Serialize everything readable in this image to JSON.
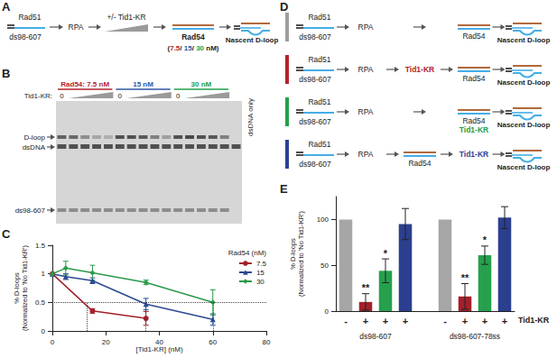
{
  "panels": {
    "A": {
      "letter": "A",
      "dna": "ds98-607",
      "protein1": "Rad51",
      "protein2": "RPA",
      "titrant": "+/- Tid1-KR",
      "protein3": "Rad54",
      "rad54_parts": [
        {
          "text": "(",
          "color": "#222222"
        },
        {
          "text": "7.5",
          "color": "#b3232d"
        },
        {
          "text": "/ ",
          "color": "#222222"
        },
        {
          "text": "15",
          "color": "#2f57a5"
        },
        {
          "text": "/ ",
          "color": "#222222"
        },
        {
          "text": "30",
          "color": "#22a04b"
        },
        {
          "text": " nM)",
          "color": "#222222"
        }
      ],
      "product": "Nascent D-loop"
    },
    "B": {
      "letter": "B",
      "groups": [
        {
          "label": "Rad54: 7.5 nM",
          "color": "#b3232d"
        },
        {
          "label": "15 nM",
          "color": "#2f57a5"
        },
        {
          "label": "30 nM",
          "color": "#22a04b"
        }
      ],
      "row_label": "Tid1-KR:",
      "zero_label": "0",
      "control_lane": "dsDNA only",
      "band_labels": [
        "D-loop",
        "dsDNA",
        "ds98-607"
      ],
      "d_loop_band": [
        0.75,
        0.7,
        0.45,
        0.3,
        0.25,
        0.85,
        0.85,
        0.8,
        0.55,
        0.35,
        0.85,
        0.9,
        0.85,
        0.8,
        0.55,
        0
      ],
      "ssdna_band": [
        1,
        1,
        1,
        1,
        1,
        1,
        1,
        1,
        1,
        1,
        1,
        1,
        1,
        1,
        1,
        0
      ]
    },
    "C": {
      "letter": "C"
    },
    "D": {
      "letter": "D",
      "protein": "Rad51",
      "dna": "ds98-607",
      "product": "Nascent D-loop",
      "rows": [
        {
          "color": "#9e9e9e",
          "columns": [
            {
              "lines": [
                {
                  "text": "RPA"
                }
              ]
            },
            {
              "dsdna": true,
              "lines": [
                {
                  "text": "Rad54"
                }
              ]
            }
          ]
        },
        {
          "color": "#b3232d",
          "columns": [
            {
              "lines": [
                {
                  "text": "RPA"
                }
              ]
            },
            {
              "lines": [
                {
                  "text": "Tid1-KR",
                  "color": "#b3232d"
                }
              ]
            },
            {
              "dsdna": true,
              "lines": [
                {
                  "text": "Rad54"
                }
              ]
            }
          ]
        },
        {
          "color": "#22a04b",
          "columns": [
            {
              "lines": [
                {
                  "text": "RPA"
                }
              ]
            },
            {
              "dsdna": true,
              "lines": [
                {
                  "text": "Rad54"
                },
                {
                  "text": "Tid1-KR",
                  "color": "#22a04b"
                }
              ]
            }
          ]
        },
        {
          "color": "#2f3f94",
          "columns": [
            {
              "lines": [
                {
                  "text": "RPA"
                }
              ]
            },
            {
              "dsdna": true,
              "lines": [
                {
                  "text": "Rad54"
                }
              ]
            },
            {
              "lines": [
                {
                  "text": "Tid1-KR",
                  "color": "#2f3f94"
                }
              ]
            }
          ]
        }
      ]
    },
    "E": {
      "letter": "E"
    }
  },
  "chart_data": [
    {
      "type": "line",
      "x_label": "[Tid1-KR] (nM)",
      "y_label": [
        "% D-loops",
        "(Normalized to 'No Tid1-KR')"
      ],
      "xlim": [
        0,
        80
      ],
      "xticks": [
        0,
        20,
        40,
        60,
        80
      ],
      "ylim": [
        0,
        1.5
      ],
      "yticks": [
        0,
        0.5,
        1,
        1.5
      ],
      "grid": false,
      "legend": "upper right",
      "legend_title": "Rad54 (nM)",
      "hline": 0.5,
      "vlines": [
        13,
        35,
        60
      ],
      "series": [
        {
          "name": "7.5",
          "color": "#a3202a",
          "marker": "circle",
          "x": [
            0,
            15,
            35
          ],
          "values": [
            1,
            0.35,
            0.22
          ],
          "errors": [
            null,
            0.04,
            0.12
          ]
        },
        {
          "name": "15",
          "color": "#2b4a93",
          "marker": "triangle",
          "x": [
            0,
            5,
            15,
            35,
            60
          ],
          "values": [
            1,
            0.95,
            0.88,
            0.47,
            0.2
          ],
          "errors": [
            null,
            0.05,
            0.05,
            0.1,
            0.1
          ]
        },
        {
          "name": "30",
          "color": "#2a9a4a",
          "marker": "diamond",
          "x": [
            0,
            5,
            15,
            35,
            60
          ],
          "values": [
            1,
            1.1,
            1.02,
            0.85,
            0.5
          ],
          "errors": [
            null,
            0.12,
            0.13,
            0.04,
            0.22
          ]
        }
      ]
    },
    {
      "type": "bar",
      "y_label": [
        "% D-loops",
        "(Normalized to 'No Tid1-KR')"
      ],
      "categories": [
        "-",
        "+",
        "+",
        "+",
        null,
        "-",
        "+",
        "+",
        "+"
      ],
      "values": [
        100,
        10,
        44,
        95,
        null,
        100,
        16,
        61,
        102
      ],
      "errors": [
        null,
        9,
        13,
        17,
        null,
        null,
        14,
        10,
        12
      ],
      "colors": [
        "#a6a6a6",
        "#a3202a",
        "#26a04c",
        "#2b3f8f",
        null,
        "#a6a6a6",
        "#a3202a",
        "#26a04c",
        "#2b3f8f"
      ],
      "significance": [
        null,
        "**",
        "*",
        null,
        null,
        null,
        "**",
        "*",
        null
      ],
      "row_label": "Tid1-KR",
      "group_labels": [
        "ds98-607",
        "ds98-607-78ss"
      ],
      "ylim": [
        0,
        125
      ],
      "yticks": [
        0,
        50,
        100
      ],
      "grid": false
    }
  ]
}
